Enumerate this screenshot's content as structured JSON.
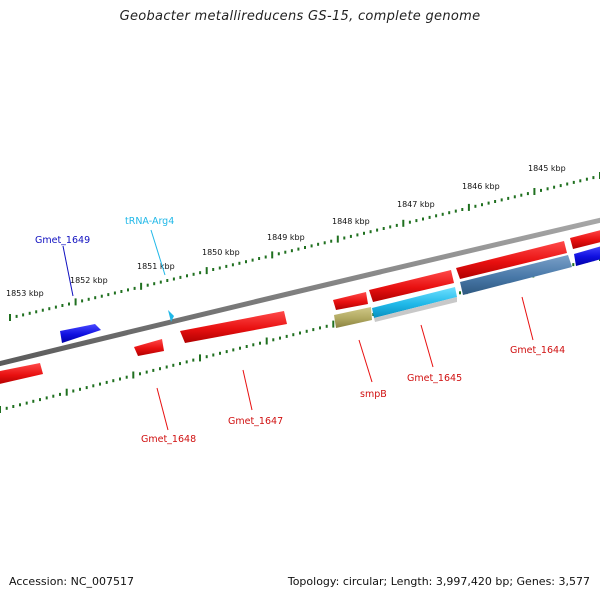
{
  "title": "Geobacter metallireducens GS-15, complete genome",
  "accession": "Accession: NC_007517",
  "summary": "Topology: circular; Length: 3,997,420 bp; Genes: 3,577",
  "kbp_labels": [
    "1845 kbp",
    "1846 kbp",
    "1847 kbp",
    "1848 kbp",
    "1849 kbp",
    "1850 kbp",
    "1851 kbp",
    "1852 kbp",
    "1853 kbp"
  ],
  "genes": {
    "gmet_1649": "Gmet_1649",
    "trna_arg4": "tRNA-Arg4",
    "gmet_1648": "Gmet_1648",
    "gmet_1647": "Gmet_1647",
    "smpb": "smpB",
    "gmet_1645": "Gmet_1645",
    "gmet_1644": "Gmet_1644"
  },
  "colors": {
    "cds_red": "#e81010",
    "cds_blue": "#1010e0",
    "trna_cyan": "#20b8e8",
    "rna_olive": "#b0a860",
    "backbone": "#808080",
    "tick_green": "#207020"
  },
  "icons": {
    "gene_arrow": "pentagon-arrow"
  }
}
